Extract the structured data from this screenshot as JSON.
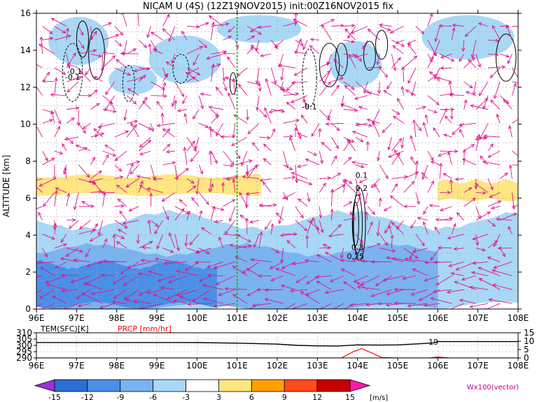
{
  "title": "NICAM U (4S) (12Z19NOV2015) init:00Z16NOV2015 fix",
  "chart_data": [
    {
      "type": "heatmap",
      "subtype": "cross-section-shading-contour-vector",
      "ylabel": "ALTITUDE [km]",
      "xlim": [
        96,
        108
      ],
      "ylim": [
        0,
        16
      ],
      "xticks": [
        "96E",
        "97E",
        "98E",
        "99E",
        "100E",
        "101E",
        "102E",
        "103E",
        "104E",
        "105E",
        "106E",
        "107E",
        "108E"
      ],
      "yticks": [
        "0",
        "2",
        "4",
        "6",
        "8",
        "10",
        "12",
        "14",
        "16"
      ],
      "reference_line_x": 101,
      "contour_labels": [
        {
          "text": "-0.1",
          "x": 96.95,
          "y": 12.7
        },
        {
          "text": "-0.1",
          "x": 96.9,
          "y": 12.4
        },
        {
          "text": "-0.1",
          "x": 102.8,
          "y": 10.8
        },
        {
          "text": "0.1",
          "x": 104.1,
          "y": 7.1
        },
        {
          "text": "0.2",
          "x": 104.1,
          "y": 6.4
        },
        {
          "text": "0.3",
          "x": 104.0,
          "y": 3.2
        },
        {
          "text": "0.25",
          "x": 103.95,
          "y": 2.7
        }
      ],
      "shading_regions": [
        {
          "level": -3,
          "xs": [
            96,
            108
          ],
          "ys": [
            0,
            4.8
          ]
        },
        {
          "level": -6,
          "xs": [
            96,
            106
          ],
          "ys": [
            0,
            3.2
          ]
        },
        {
          "level": -9,
          "xs": [
            96,
            100.5
          ],
          "ys": [
            0.2,
            2.4
          ]
        },
        {
          "level": 3,
          "xs": [
            96,
            101.6
          ],
          "ys": [
            6.2,
            7.2
          ]
        },
        {
          "level": 3,
          "xs": [
            106.0,
            108
          ],
          "ys": [
            5.9,
            6.9
          ]
        }
      ]
    },
    {
      "type": "line",
      "left_label": "TEM(SFC)[K]",
      "right_label": "PRCP [mm/hr]",
      "left_ylim": [
        290,
        310
      ],
      "left_yticks": [
        "310",
        "305",
        "300",
        "295",
        "290"
      ],
      "right_ylim": [
        0,
        15
      ],
      "right_yticks": [
        "15",
        "10",
        "5",
        "0"
      ],
      "xticks": [
        "96E",
        "97E",
        "98E",
        "99E",
        "100E",
        "101E",
        "102E",
        "103E",
        "104E",
        "105E",
        "106E",
        "107E",
        "108E"
      ],
      "series": [
        {
          "name": "TEM(SFC)[K]",
          "color": "#000000",
          "x": [
            96,
            97,
            98,
            99,
            100,
            101,
            102,
            102.5,
            103,
            103.5,
            104,
            104.5,
            105,
            105.5,
            105.9,
            106,
            107,
            108
          ],
          "y": [
            302.3,
            302.3,
            302.3,
            302.3,
            302.2,
            301.8,
            301.0,
            300.0,
            299.6,
            299.5,
            300.4,
            300.2,
            300.4,
            301.2,
            302.0,
            303.0,
            303.0,
            303.0
          ]
        },
        {
          "name": "PRCP [mm/hr]",
          "color": "#ff0000",
          "x": [
            96,
            103.6,
            103.9,
            104.1,
            104.4,
            104.6,
            105.0,
            105.8,
            106.0,
            106.3,
            108
          ],
          "y": [
            0,
            0,
            3.8,
            5.6,
            2.5,
            0.3,
            0,
            0,
            0.6,
            0,
            0
          ]
        }
      ],
      "annotation": "19"
    }
  ],
  "colorbar": {
    "levels": [
      "-15",
      "-12",
      "-9",
      "-6",
      "-3",
      "3",
      "6",
      "9",
      "12",
      "15"
    ],
    "colors": [
      "#9b2fe0",
      "#2a6ed6",
      "#4a90e8",
      "#7ab3f0",
      "#a8d8f5",
      "#ffffff",
      "#ffe680",
      "#ffa000",
      "#ff4a1a",
      "#c40000",
      "#ff1aa6"
    ],
    "unit": "[m/s]",
    "vector_label": "Wx100(vector)"
  }
}
